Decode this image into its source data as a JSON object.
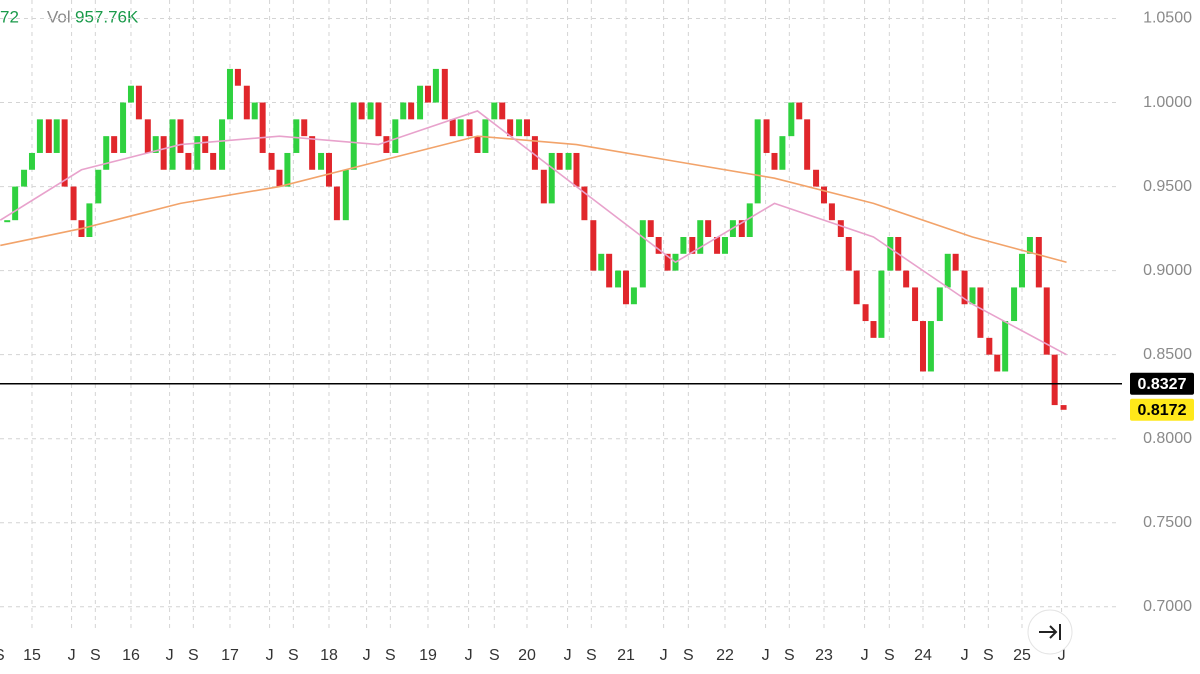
{
  "header": {
    "fragment": "72",
    "vol_label": "Vol",
    "vol_value": "957.76K"
  },
  "chart_data": {
    "type": "candlestick",
    "up_color": "#2fd13f",
    "down_color": "#e0262b",
    "x": [
      2014.75,
      2014.83,
      2014.92,
      2015,
      2015.08,
      2015.17,
      2015.25,
      2015.33,
      2015.42,
      2015.5,
      2015.58,
      2015.67,
      2015.75,
      2015.83,
      2015.92,
      2016,
      2016.08,
      2016.17,
      2016.25,
      2016.33,
      2016.42,
      2016.5,
      2016.58,
      2016.67,
      2016.75,
      2016.83,
      2016.92,
      2017,
      2017.08,
      2017.17,
      2017.25,
      2017.33,
      2017.42,
      2017.5,
      2017.58,
      2017.67,
      2017.75,
      2017.83,
      2017.92,
      2018,
      2018.08,
      2018.17,
      2018.25,
      2018.33,
      2018.42,
      2018.5,
      2018.58,
      2018.67,
      2018.75,
      2018.83,
      2018.92,
      2019,
      2019.08,
      2019.17,
      2019.25,
      2019.33,
      2019.42,
      2019.5,
      2019.58,
      2019.67,
      2019.75,
      2019.83,
      2019.92,
      2020,
      2020.08,
      2020.17,
      2020.25,
      2020.33,
      2020.42,
      2020.5,
      2020.58,
      2020.67,
      2020.75,
      2020.83,
      2020.92,
      2021,
      2021.08,
      2021.17,
      2021.25,
      2021.33,
      2021.42,
      2021.5,
      2021.58,
      2021.67,
      2021.75,
      2021.83,
      2021.92,
      2022,
      2022.08,
      2022.17,
      2022.25,
      2022.33,
      2022.42,
      2022.5,
      2022.58,
      2022.67,
      2022.75,
      2022.83,
      2022.92,
      2023,
      2023.08,
      2023.17,
      2023.25,
      2023.33,
      2023.42,
      2023.5,
      2023.58,
      2023.67,
      2023.75,
      2023.83,
      2023.92,
      2024,
      2024.08,
      2024.17,
      2024.25,
      2024.33,
      2024.42,
      2024.5,
      2024.58,
      2024.67,
      2024.75,
      2024.83,
      2024.92,
      2025,
      2025.08,
      2025.17,
      2025.25,
      2025.33,
      2025.42
    ],
    "close": [
      0.93,
      0.95,
      0.96,
      0.97,
      0.99,
      0.97,
      0.99,
      0.95,
      0.93,
      0.92,
      0.94,
      0.96,
      0.98,
      0.97,
      1.0,
      1.01,
      0.99,
      0.97,
      0.98,
      0.96,
      0.99,
      0.97,
      0.96,
      0.98,
      0.97,
      0.96,
      0.99,
      1.02,
      1.01,
      0.99,
      1.0,
      0.97,
      0.96,
      0.95,
      0.97,
      0.99,
      0.98,
      0.96,
      0.97,
      0.95,
      0.93,
      0.96,
      1.0,
      0.99,
      1.0,
      0.98,
      0.97,
      0.99,
      1.0,
      0.99,
      1.01,
      1.0,
      1.02,
      0.99,
      0.98,
      0.99,
      0.98,
      0.97,
      0.99,
      1.0,
      0.99,
      0.98,
      0.99,
      0.98,
      0.96,
      0.94,
      0.97,
      0.96,
      0.97,
      0.95,
      0.93,
      0.9,
      0.91,
      0.89,
      0.9,
      0.88,
      0.89,
      0.93,
      0.92,
      0.91,
      0.9,
      0.91,
      0.92,
      0.91,
      0.93,
      0.92,
      0.91,
      0.92,
      0.93,
      0.92,
      0.94,
      0.99,
      0.97,
      0.96,
      0.98,
      1.0,
      0.99,
      0.96,
      0.95,
      0.94,
      0.93,
      0.92,
      0.9,
      0.88,
      0.87,
      0.86,
      0.9,
      0.92,
      0.9,
      0.89,
      0.87,
      0.84,
      0.87,
      0.89,
      0.91,
      0.9,
      0.88,
      0.89,
      0.86,
      0.85,
      0.84,
      0.87,
      0.89,
      0.91,
      0.92,
      0.89,
      0.85,
      0.82,
      0.8172
    ],
    "moving_averages": [
      {
        "color": "#f2a36a",
        "x": [
          2014.68,
          2015.5,
          2016.5,
          2017.5,
          2018.5,
          2019.5,
          2020.5,
          2021.5,
          2022.5,
          2023.5,
          2024.5,
          2025.45
        ],
        "values": [
          0.915,
          0.925,
          0.94,
          0.95,
          0.965,
          0.98,
          0.975,
          0.965,
          0.955,
          0.94,
          0.92,
          0.905
        ]
      },
      {
        "color": "#e8a2cc",
        "x": [
          2014.68,
          2015.5,
          2016.5,
          2017.5,
          2018.5,
          2019.5,
          2020.5,
          2021.5,
          2022.5,
          2023.5,
          2024.5,
          2025.45
        ],
        "values": [
          0.93,
          0.96,
          0.975,
          0.98,
          0.975,
          0.995,
          0.95,
          0.905,
          0.94,
          0.92,
          0.88,
          0.85
        ]
      }
    ],
    "price_lines": [
      {
        "value": 0.8327,
        "color": "#000000",
        "text_color": "#ffffff",
        "line": true
      },
      {
        "value": 0.8172,
        "color": "#ffe81a",
        "text_color": "#000000",
        "line": false
      }
    ],
    "xlim": [
      2014.677,
      2025.99
    ],
    "xticks": [
      {
        "value": 2014.67,
        "label": "S"
      },
      {
        "value": 2015,
        "label": "15"
      },
      {
        "value": 2015.4,
        "label": "J"
      },
      {
        "value": 2015.64,
        "label": "S"
      },
      {
        "value": 2016,
        "label": "16"
      },
      {
        "value": 2016.39,
        "label": "J"
      },
      {
        "value": 2016.63,
        "label": "S"
      },
      {
        "value": 2017,
        "label": "17"
      },
      {
        "value": 2017.4,
        "label": "J"
      },
      {
        "value": 2017.64,
        "label": "S"
      },
      {
        "value": 2018,
        "label": "18"
      },
      {
        "value": 2018.38,
        "label": "J"
      },
      {
        "value": 2018.62,
        "label": "S"
      },
      {
        "value": 2019,
        "label": "19"
      },
      {
        "value": 2019.41,
        "label": "J"
      },
      {
        "value": 2019.67,
        "label": "S"
      },
      {
        "value": 2020,
        "label": "20"
      },
      {
        "value": 2020.41,
        "label": "J"
      },
      {
        "value": 2020.65,
        "label": "S"
      },
      {
        "value": 2021,
        "label": "21"
      },
      {
        "value": 2021.38,
        "label": "J"
      },
      {
        "value": 2021.63,
        "label": "S"
      },
      {
        "value": 2022,
        "label": "22"
      },
      {
        "value": 2022.41,
        "label": "J"
      },
      {
        "value": 2022.65,
        "label": "S"
      },
      {
        "value": 2023,
        "label": "23"
      },
      {
        "value": 2023.41,
        "label": "J"
      },
      {
        "value": 2023.66,
        "label": "S"
      },
      {
        "value": 2024,
        "label": "24"
      },
      {
        "value": 2024.42,
        "label": "J"
      },
      {
        "value": 2024.66,
        "label": "S"
      },
      {
        "value": 2025,
        "label": "25"
      },
      {
        "value": 2025.4,
        "label": "J"
      }
    ],
    "ylim": [
      0.685,
      1.061
    ],
    "yticks": [
      {
        "value": 0.7,
        "label": "0.7000"
      },
      {
        "value": 0.75,
        "label": "0.7500"
      },
      {
        "value": 0.8,
        "label": "0.8000"
      },
      {
        "value": 0.85,
        "label": "0.8500"
      },
      {
        "value": 0.9,
        "label": "0.9000"
      },
      {
        "value": 0.95,
        "label": "0.9500"
      },
      {
        "value": 1.0,
        "label": "1.0000"
      },
      {
        "value": 1.05,
        "label": "1.0500"
      }
    ],
    "grid": true
  }
}
